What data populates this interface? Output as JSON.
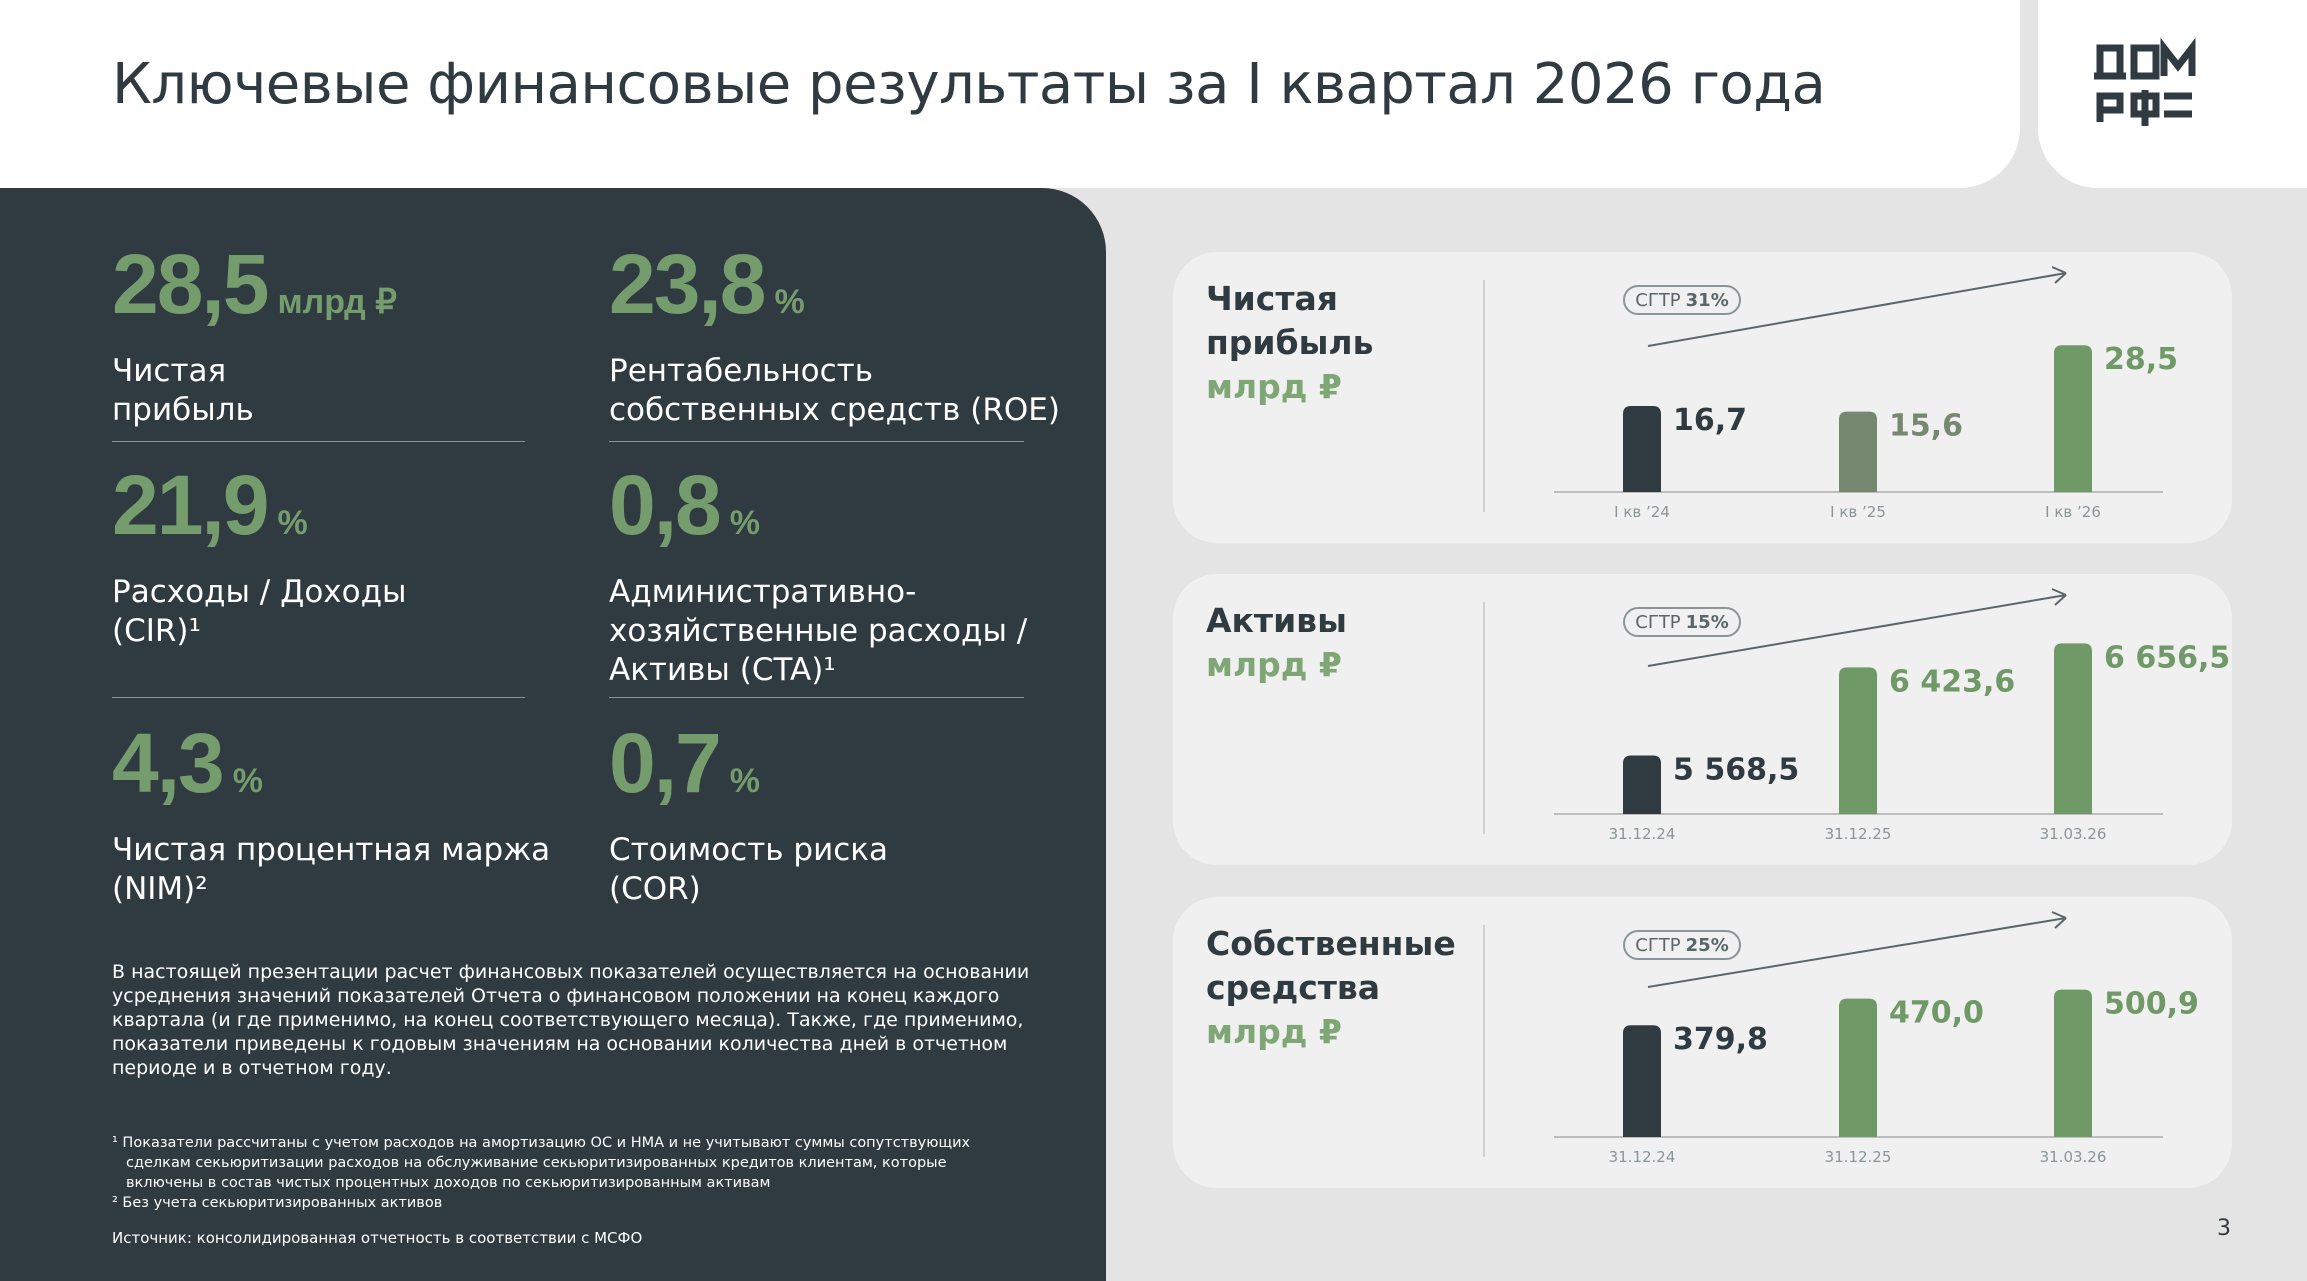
{
  "header": {
    "title": "Ключевые финансовые результаты за I квартал 2026 года"
  },
  "kpis": [
    {
      "value": "28,5",
      "unit": "млрд ₽",
      "label": [
        "Чистая",
        "прибыль"
      ]
    },
    {
      "value": "23,8",
      "unit": "%",
      "label": [
        "Рентабельность",
        "собственных средств (ROE)"
      ]
    },
    {
      "value": "21,9",
      "unit": "%",
      "label": [
        "Расходы / Доходы",
        "(CIR)¹"
      ]
    },
    {
      "value": "0,8",
      "unit": "%",
      "label": [
        "Административно-",
        "хозяйственные расходы /",
        "Активы (CTA)¹"
      ]
    },
    {
      "value": "4,3",
      "unit": "%",
      "label": [
        "Чистая процентная маржа",
        "(NIM)²"
      ]
    },
    {
      "value": "0,7",
      "unit": "%",
      "label": [
        "Стоимость риска",
        "(COR)"
      ]
    }
  ],
  "paragraph": "В настоящей презентации расчет финансовых показателей осуществляется на основании усреднения значений показателей Отчета о финансовом положении на конец каждого квартала (и где применимо, на конец соответствующего месяца). Также, где применимо, показатели приведены к годовым значениям на основании количества дней в отчетном периоде и в отчетном году.",
  "footnotes": [
    "¹ Показатели рассчитаны с учетом расходов на амортизацию ОС и НМА и не учитывают суммы сопутствующих сделкам секьюритизации расходов на обслуживание секьюритизированных кредитов клиентам, которые включены в состав чистых процентных доходов по секьюритизированным активам",
    "² Без учета секьюритизированных активов"
  ],
  "source": "Источник: консолидированная отчетность в соответствии с МСФО",
  "page_number": "3",
  "charts": [
    {
      "type": "bar",
      "title": [
        "Чистая",
        "прибыль"
      ],
      "unit": "млрд ₽",
      "cagr_label": "СГТР",
      "cagr": "31%",
      "categories": [
        "I кв ’24",
        "I кв ’25",
        "I кв ’26"
      ],
      "values": [
        16.7,
        15.6,
        28.5
      ],
      "value_labels": [
        "16,7",
        "15,6",
        "28,5"
      ],
      "colors": [
        "#2f3b40",
        "#76886f",
        "#6f9966"
      ],
      "ylim": [
        0,
        40
      ]
    },
    {
      "type": "bar",
      "title": [
        "Активы"
      ],
      "unit": "млрд ₽",
      "cagr_label": "СГТР",
      "cagr": "15%",
      "categories": [
        "31.12.24",
        "31.12.25",
        "31.03.26"
      ],
      "values": [
        5568.5,
        6423.6,
        6656.5
      ],
      "value_labels": [
        "5 568,5",
        "6 423,6",
        "6 656,5"
      ],
      "colors": [
        "#2f3b40",
        "#6f9966",
        "#6f9966"
      ],
      "ylim": [
        5000,
        7000
      ]
    },
    {
      "type": "bar",
      "title": [
        "Собственные",
        "средства"
      ],
      "unit": "млрд ₽",
      "cagr_label": "СГТР",
      "cagr": "25%",
      "categories": [
        "31.12.24",
        "31.12.25",
        "31.03.26"
      ],
      "values": [
        379.8,
        470.0,
        500.9
      ],
      "value_labels": [
        "379,8",
        "470,0",
        "500,9"
      ],
      "colors": [
        "#2f3b40",
        "#6f9966",
        "#6f9966"
      ],
      "ylim": [
        0,
        700
      ]
    }
  ]
}
